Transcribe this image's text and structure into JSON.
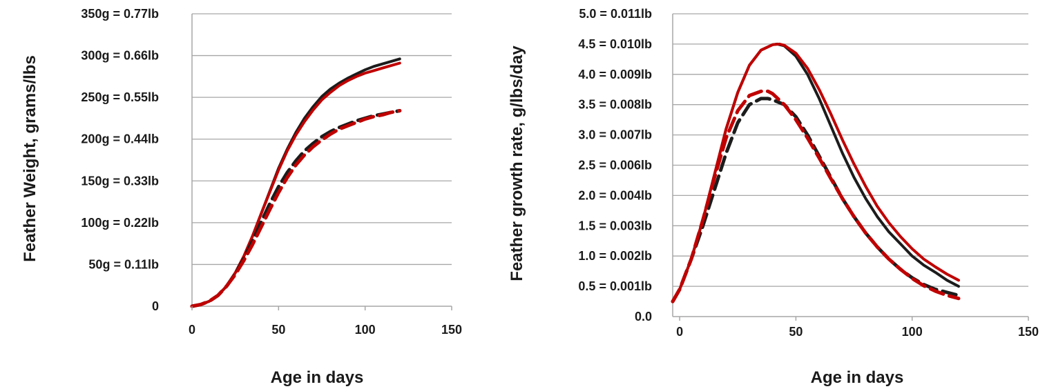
{
  "chart_data": [
    {
      "type": "line",
      "xlabel": "Age in days",
      "ylabel": "Feather Weight, grams/lbs",
      "xlim": [
        0,
        150
      ],
      "ylim": [
        0,
        350
      ],
      "x_ticks": [
        {
          "value": 0,
          "label": "0"
        },
        {
          "value": 50,
          "label": "50"
        },
        {
          "value": 100,
          "label": "100"
        },
        {
          "value": 150,
          "label": "150"
        }
      ],
      "y_ticks": [
        {
          "value": 0,
          "label": "0"
        },
        {
          "value": 50,
          "label": "50g = 0.11lb"
        },
        {
          "value": 100,
          "label": "100g = 0.22lb"
        },
        {
          "value": 150,
          "label": "150g = 0.33lb"
        },
        {
          "value": 200,
          "label": "200g = 0.44lb"
        },
        {
          "value": 250,
          "label": "250g = 0.55lb"
        },
        {
          "value": 300,
          "label": "300g = 0.66lb"
        },
        {
          "value": 350,
          "label": "350g = 0.77lb"
        }
      ],
      "grid": "horizontal",
      "series": [
        {
          "color": "#1c1c1c",
          "style": "solid",
          "x": [
            0,
            5,
            10,
            15,
            20,
            25,
            30,
            35,
            40,
            45,
            50,
            55,
            60,
            65,
            70,
            75,
            80,
            85,
            90,
            95,
            100,
            105,
            110,
            115,
            120
          ],
          "y": [
            0,
            2,
            6,
            13,
            24,
            40,
            60,
            84,
            111,
            138,
            165,
            188,
            208,
            225,
            239,
            251,
            260,
            267,
            273,
            278,
            283,
            287,
            290,
            293,
            296
          ]
        },
        {
          "color": "#c00000",
          "style": "solid",
          "x": [
            0,
            5,
            10,
            15,
            20,
            25,
            30,
            35,
            40,
            45,
            50,
            55,
            60,
            65,
            70,
            75,
            80,
            85,
            90,
            95,
            100,
            105,
            110,
            115,
            120
          ],
          "y": [
            0,
            2,
            6,
            13,
            24,
            40,
            60,
            84,
            111,
            137,
            163,
            186,
            205,
            221,
            235,
            247,
            256,
            264,
            270,
            275,
            279,
            282,
            285,
            288,
            291
          ]
        },
        {
          "color": "#1c1c1c",
          "style": "dashed",
          "x": [
            0,
            5,
            10,
            15,
            20,
            25,
            30,
            35,
            40,
            45,
            50,
            55,
            60,
            65,
            70,
            75,
            80,
            85,
            90,
            95,
            100,
            105,
            110,
            115,
            120
          ],
          "y": [
            0,
            2,
            6,
            13,
            24,
            39,
            57,
            78,
            101,
            123,
            143,
            160,
            174,
            186,
            195,
            203,
            209,
            214,
            218,
            222,
            225,
            228,
            230,
            232,
            234
          ]
        },
        {
          "color": "#c00000",
          "style": "dashed",
          "x": [
            0,
            5,
            10,
            15,
            20,
            25,
            30,
            35,
            40,
            45,
            50,
            55,
            60,
            65,
            70,
            75,
            80,
            85,
            90,
            95,
            100,
            105,
            110,
            115,
            120
          ],
          "y": [
            0,
            2,
            6,
            13,
            24,
            38,
            55,
            74,
            95,
            116,
            136,
            154,
            169,
            181,
            191,
            199,
            206,
            212,
            216,
            220,
            224,
            227,
            229,
            232,
            234
          ]
        }
      ]
    },
    {
      "type": "line",
      "xlabel": "Age in days",
      "ylabel": "Feather growth rate, g/lbs/day",
      "xlim": [
        -3,
        150
      ],
      "ylim": [
        0,
        5
      ],
      "x_ticks": [
        {
          "value": 0,
          "label": "0"
        },
        {
          "value": 50,
          "label": "50"
        },
        {
          "value": 100,
          "label": "100"
        },
        {
          "value": 150,
          "label": "150"
        }
      ],
      "y_ticks": [
        {
          "value": 0,
          "label": "0.0"
        },
        {
          "value": 0.5,
          "label": "0.5 = 0.001lb"
        },
        {
          "value": 1.0,
          "label": "1.0 = 0.002lb"
        },
        {
          "value": 1.5,
          "label": "1.5 = 0.003lb"
        },
        {
          "value": 2.0,
          "label": "2.0 = 0.004lb"
        },
        {
          "value": 2.5,
          "label": "2.5 = 0.006lb"
        },
        {
          "value": 3.0,
          "label": "3.0 = 0.007lb"
        },
        {
          "value": 3.5,
          "label": "3.5 = 0.008lb"
        },
        {
          "value": 4.0,
          "label": "4.0 = 0.009lb"
        },
        {
          "value": 4.5,
          "label": "4.5 = 0.010lb"
        },
        {
          "value": 5.0,
          "label": "5.0 = 0.011lb"
        }
      ],
      "grid": "horizontal",
      "series": [
        {
          "color": "#1c1c1c",
          "style": "solid",
          "x": [
            -3,
            0,
            5,
            10,
            15,
            20,
            25,
            30,
            35,
            40,
            42,
            45,
            50,
            55,
            60,
            65,
            70,
            75,
            80,
            85,
            90,
            95,
            100,
            105,
            110,
            115,
            120
          ],
          "y": [
            0.25,
            0.45,
            0.95,
            1.6,
            2.35,
            3.1,
            3.7,
            4.15,
            4.4,
            4.49,
            4.5,
            4.47,
            4.3,
            4.0,
            3.6,
            3.15,
            2.7,
            2.3,
            1.95,
            1.65,
            1.4,
            1.2,
            1.0,
            0.85,
            0.73,
            0.6,
            0.5
          ]
        },
        {
          "color": "#c00000",
          "style": "solid",
          "x": [
            -3,
            0,
            5,
            10,
            15,
            20,
            25,
            30,
            35,
            40,
            43,
            45,
            50,
            55,
            60,
            65,
            70,
            75,
            80,
            85,
            90,
            95,
            100,
            105,
            110,
            115,
            120
          ],
          "y": [
            0.25,
            0.45,
            0.95,
            1.6,
            2.35,
            3.1,
            3.7,
            4.15,
            4.4,
            4.49,
            4.5,
            4.48,
            4.35,
            4.1,
            3.75,
            3.35,
            2.92,
            2.52,
            2.15,
            1.82,
            1.55,
            1.32,
            1.12,
            0.95,
            0.82,
            0.7,
            0.6
          ]
        },
        {
          "color": "#1c1c1c",
          "style": "dashed",
          "x": [
            -3,
            0,
            5,
            10,
            15,
            20,
            25,
            30,
            35,
            38,
            40,
            45,
            50,
            55,
            60,
            65,
            70,
            75,
            80,
            85,
            90,
            95,
            100,
            105,
            110,
            115,
            120
          ],
          "y": [
            0.25,
            0.45,
            0.95,
            1.5,
            2.1,
            2.7,
            3.2,
            3.5,
            3.6,
            3.6,
            3.58,
            3.5,
            3.3,
            3.0,
            2.65,
            2.3,
            1.95,
            1.65,
            1.38,
            1.15,
            0.95,
            0.78,
            0.64,
            0.53,
            0.45,
            0.4,
            0.35
          ]
        },
        {
          "color": "#c00000",
          "style": "dashed",
          "x": [
            -3,
            0,
            5,
            10,
            15,
            20,
            25,
            30,
            35,
            38,
            40,
            45,
            50,
            55,
            60,
            65,
            70,
            75,
            80,
            85,
            90,
            95,
            100,
            105,
            110,
            115,
            120
          ],
          "y": [
            0.25,
            0.45,
            0.95,
            1.6,
            2.3,
            2.95,
            3.4,
            3.65,
            3.72,
            3.72,
            3.68,
            3.5,
            3.25,
            2.95,
            2.62,
            2.28,
            1.95,
            1.65,
            1.38,
            1.15,
            0.95,
            0.78,
            0.63,
            0.51,
            0.42,
            0.35,
            0.3
          ]
        }
      ]
    }
  ]
}
